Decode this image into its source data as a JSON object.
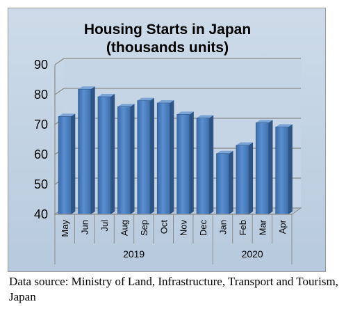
{
  "chart_data": {
    "type": "bar",
    "title": "Housing Starts in Japan",
    "subtitle": "(thousands units)",
    "categories": [
      "May",
      "Jun",
      "Jul",
      "Aug",
      "Sep",
      "Oct",
      "Nov",
      "Dec",
      "Jan",
      "Feb",
      "Mar",
      "Apr"
    ],
    "groups": [
      {
        "label": "2019",
        "count": 8
      },
      {
        "label": "2020",
        "count": 4
      }
    ],
    "values": [
      72.7,
      81.8,
      79.3,
      76.0,
      78.0,
      77.2,
      73.4,
      72.2,
      60.3,
      63.1,
      70.6,
      69.2
    ],
    "ylim": [
      40,
      90
    ],
    "yticks": [
      40,
      50,
      60,
      70,
      80,
      90
    ],
    "bar_color": "#4f81bd",
    "grid": true,
    "legend": "none"
  },
  "source_note": "Data source: Ministry of Land, Infrastructure, Transport and Tourism, Japan"
}
